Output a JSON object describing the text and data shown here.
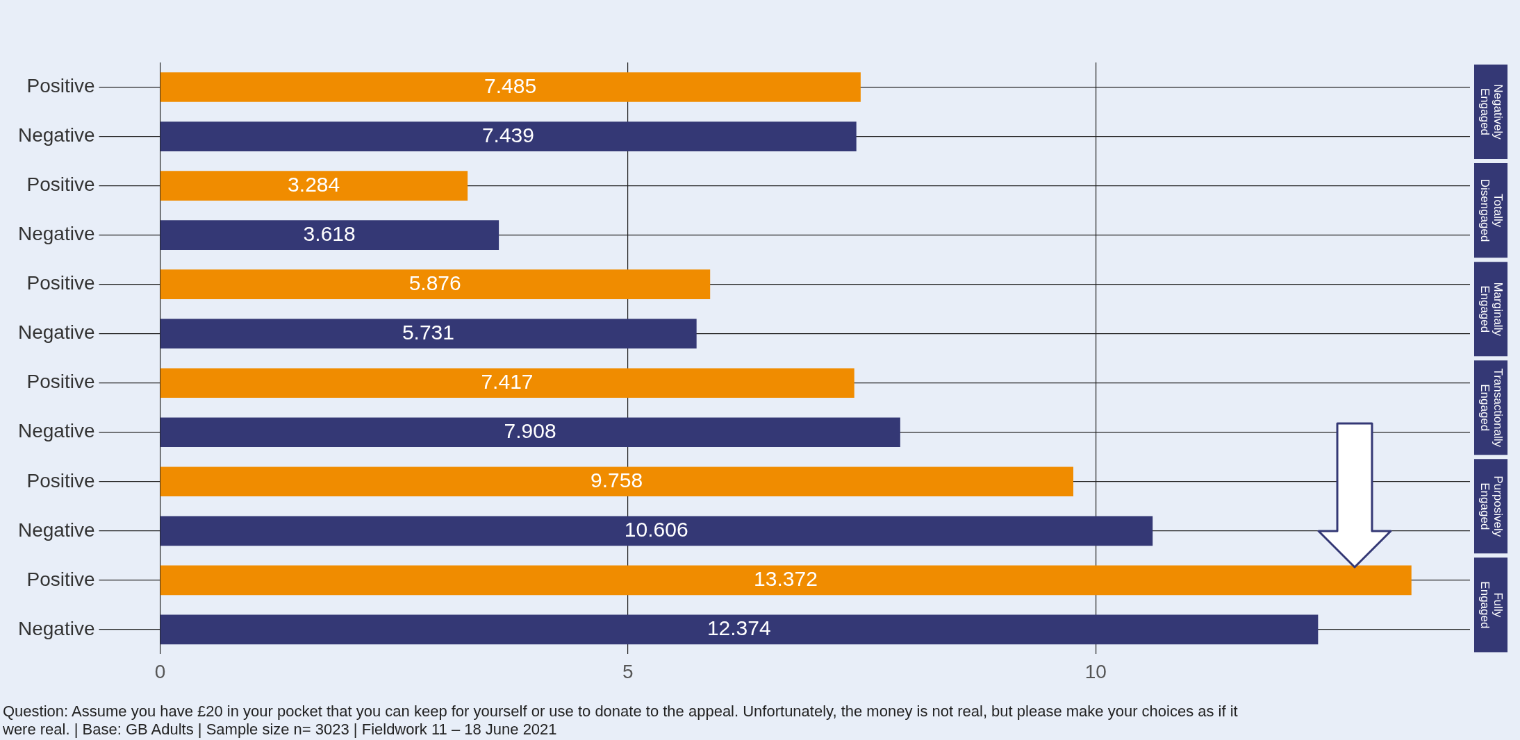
{
  "chart_data": {
    "type": "bar",
    "orientation": "horizontal",
    "categories": [
      "Positive",
      "Negative",
      "Positive",
      "Negative",
      "Positive",
      "Negative",
      "Positive",
      "Negative",
      "Positive",
      "Negative",
      "Positive",
      "Negative"
    ],
    "values": [
      7.485,
      7.439,
      3.284,
      3.618,
      5.876,
      5.731,
      7.417,
      7.908,
      9.758,
      10.606,
      13.372,
      12.374
    ],
    "colors": [
      "#f08c00",
      "#343875",
      "#f08c00",
      "#343875",
      "#f08c00",
      "#343875",
      "#f08c00",
      "#343875",
      "#f08c00",
      "#343875",
      "#f08c00",
      "#343875"
    ],
    "xlim": [
      0,
      14
    ],
    "xticks": [
      0,
      5,
      10
    ],
    "grid": true,
    "data_labels": true,
    "annotations": [
      "Negatively Engaged",
      "Totally Disengaged",
      "Marginally Engaged",
      "Transactionally Engaged",
      "Purposively Engaged",
      "Fully Engaged",
      "Question: Assume you have £20 in your pocket that you can keep for yourself or use to donate to the appeal. Unfortunately, the money is not real, but please make your choices as if it were real. | Base: GB Adults | Sample size n= 3023 | Fieldwork 11 – 18 June 2021"
    ]
  }
}
